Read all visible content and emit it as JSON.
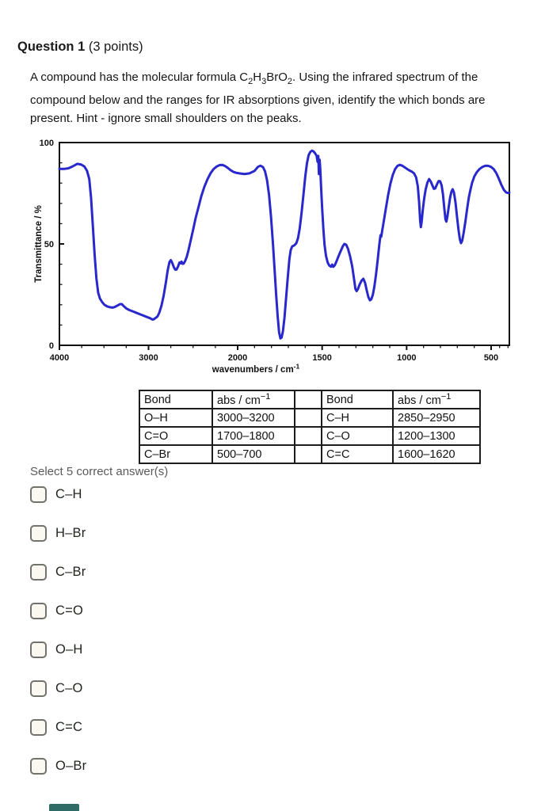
{
  "question": {
    "title_bold": "Question 1",
    "title_rest": " (3 points)",
    "body_parts": [
      {
        "t": "A compound has the molecular formula C"
      },
      {
        "sub": "2"
      },
      {
        "t": "H"
      },
      {
        "sub": "3"
      },
      {
        "t": "BrO"
      },
      {
        "sub": "2"
      },
      {
        "t": ".  Using the infrared spectrum of the compound below and the ranges for IR absorptions given, identify the which bonds are present. Hint - ignore small shoulders on the peaks."
      }
    ]
  },
  "chart_data": {
    "type": "line",
    "title": "",
    "xlabel": "wavenumbers / cm",
    "xlabel_superscript": "-1",
    "ylabel": "Transmittance / %",
    "line_color": "#2828cc",
    "x_axis": {
      "reversed": true,
      "scale_break": 2000,
      "xlim": [
        4000,
        390
      ],
      "major_ticks": [
        4000,
        3000,
        2000,
        1500,
        1000,
        500
      ],
      "minor_ticks": [
        3750,
        3500,
        3250,
        2750,
        2500,
        2250,
        1900,
        1800,
        1700,
        1600,
        1400,
        1300,
        1200,
        1100,
        900,
        800,
        700,
        600,
        450,
        400
      ]
    },
    "y_axis": {
      "ylim": [
        0,
        100
      ],
      "major_ticks": [
        0,
        50,
        100
      ],
      "minor_ticks": [
        10,
        20,
        30,
        40,
        60,
        70,
        80,
        90
      ]
    },
    "series": [
      {
        "name": "IR transmittance spectrum",
        "points": [
          [
            4000,
            87
          ],
          [
            3950,
            87
          ],
          [
            3900,
            87.3
          ],
          [
            3850,
            88.3
          ],
          [
            3800,
            89.5
          ],
          [
            3760,
            89.2
          ],
          [
            3720,
            88.2
          ],
          [
            3690,
            86
          ],
          [
            3665,
            82
          ],
          [
            3645,
            73
          ],
          [
            3625,
            59
          ],
          [
            3605,
            45
          ],
          [
            3585,
            33
          ],
          [
            3565,
            26
          ],
          [
            3545,
            23
          ],
          [
            3520,
            21.3
          ],
          [
            3495,
            20
          ],
          [
            3465,
            19.2
          ],
          [
            3435,
            18.8
          ],
          [
            3405,
            18.6
          ],
          [
            3375,
            19
          ],
          [
            3345,
            19.7
          ],
          [
            3320,
            20.3
          ],
          [
            3300,
            20.3
          ],
          [
            3280,
            19.4
          ],
          [
            3250,
            18.2
          ],
          [
            3215,
            17.4
          ],
          [
            3180,
            16.8
          ],
          [
            3140,
            16.1
          ],
          [
            3100,
            15.4
          ],
          [
            3060,
            14.7
          ],
          [
            3020,
            14
          ],
          [
            2985,
            13.4
          ],
          [
            2955,
            12.7
          ],
          [
            2940,
            12.9
          ],
          [
            2920,
            13.5
          ],
          [
            2900,
            14.2
          ],
          [
            2880,
            16
          ],
          [
            2855,
            19.5
          ],
          [
            2830,
            24.5
          ],
          [
            2805,
            31
          ],
          [
            2785,
            37
          ],
          [
            2765,
            41
          ],
          [
            2750,
            42
          ],
          [
            2735,
            40.8
          ],
          [
            2715,
            38.4
          ],
          [
            2700,
            37.3
          ],
          [
            2685,
            37.4
          ],
          [
            2668,
            38.9
          ],
          [
            2653,
            40.8
          ],
          [
            2640,
            40.4
          ],
          [
            2630,
            41.3
          ],
          [
            2618,
            40.2
          ],
          [
            2605,
            40.3
          ],
          [
            2590,
            41.5
          ],
          [
            2572,
            43.6
          ],
          [
            2552,
            46.8
          ],
          [
            2528,
            51.5
          ],
          [
            2500,
            57
          ],
          [
            2470,
            63
          ],
          [
            2440,
            68
          ],
          [
            2408,
            73.5
          ],
          [
            2375,
            78
          ],
          [
            2340,
            81.8
          ],
          [
            2305,
            84.8
          ],
          [
            2270,
            86.9
          ],
          [
            2235,
            88.2
          ],
          [
            2200,
            88.9
          ],
          [
            2170,
            89
          ],
          [
            2140,
            88.4
          ],
          [
            2110,
            87.5
          ],
          [
            2080,
            86.4
          ],
          [
            2050,
            85.6
          ],
          [
            2020,
            85.1
          ],
          [
            1990,
            84.8
          ],
          [
            1960,
            84.5
          ],
          [
            1930,
            84.8
          ],
          [
            1900,
            86
          ],
          [
            1880,
            88
          ],
          [
            1865,
            88.6
          ],
          [
            1850,
            87.9
          ],
          [
            1838,
            85.8
          ],
          [
            1826,
            81.5
          ],
          [
            1814,
            74
          ],
          [
            1802,
            63
          ],
          [
            1791,
            50
          ],
          [
            1781,
            37
          ],
          [
            1772,
            25
          ],
          [
            1763,
            14
          ],
          [
            1755,
            6.5
          ],
          [
            1747,
            3.4
          ],
          [
            1740,
            3.8
          ],
          [
            1732,
            7
          ],
          [
            1723,
            13.5
          ],
          [
            1713,
            23.5
          ],
          [
            1703,
            34
          ],
          [
            1694,
            42.5
          ],
          [
            1686,
            47
          ],
          [
            1677,
            48.8
          ],
          [
            1665,
            49.3
          ],
          [
            1653,
            50.3
          ],
          [
            1643,
            52.8
          ],
          [
            1633,
            57.5
          ],
          [
            1622,
            65
          ],
          [
            1611,
            74
          ],
          [
            1600,
            83
          ],
          [
            1590,
            89.8
          ],
          [
            1580,
            93.8
          ],
          [
            1570,
            95.4
          ],
          [
            1560,
            96
          ],
          [
            1550,
            95.6
          ],
          [
            1541,
            94.6
          ],
          [
            1533,
            93.6
          ],
          [
            1527,
            90.5
          ],
          [
            1523,
            93.4
          ],
          [
            1519,
            84.5
          ],
          [
            1515,
            91.5
          ],
          [
            1511,
            87
          ],
          [
            1506,
            77.5
          ],
          [
            1500,
            67.5
          ],
          [
            1493,
            57.5
          ],
          [
            1486,
            49.5
          ],
          [
            1477,
            44
          ],
          [
            1467,
            40.8
          ],
          [
            1457,
            39.3
          ],
          [
            1448,
            38.8
          ],
          [
            1441,
            39.8
          ],
          [
            1434,
            38.7
          ],
          [
            1426,
            39.4
          ],
          [
            1416,
            41.2
          ],
          [
            1404,
            43.7
          ],
          [
            1390,
            46.5
          ],
          [
            1377,
            49
          ],
          [
            1368,
            50
          ],
          [
            1358,
            49.6
          ],
          [
            1347,
            47.6
          ],
          [
            1335,
            44
          ],
          [
            1322,
            39
          ],
          [
            1311,
            32.5
          ],
          [
            1303,
            27.8
          ],
          [
            1296,
            26.7
          ],
          [
            1288,
            27.8
          ],
          [
            1278,
            30
          ],
          [
            1266,
            32
          ],
          [
            1256,
            32.8
          ],
          [
            1246,
            30.8
          ],
          [
            1236,
            27
          ],
          [
            1226,
            23.7
          ],
          [
            1217,
            22.2
          ],
          [
            1209,
            22.7
          ],
          [
            1200,
            25
          ],
          [
            1191,
            29
          ],
          [
            1181,
            35
          ],
          [
            1171,
            42.5
          ],
          [
            1162,
            49.5
          ],
          [
            1155,
            54.3
          ],
          [
            1150,
            53.6
          ],
          [
            1144,
            56.8
          ],
          [
            1136,
            60.8
          ],
          [
            1124,
            67
          ],
          [
            1110,
            74
          ],
          [
            1096,
            79.8
          ],
          [
            1082,
            84
          ],
          [
            1068,
            86.9
          ],
          [
            1054,
            88.5
          ],
          [
            1040,
            89
          ],
          [
            1026,
            88.6
          ],
          [
            1012,
            87.8
          ],
          [
            998,
            87
          ],
          [
            984,
            86.3
          ],
          [
            970,
            85.7
          ],
          [
            956,
            84.8
          ],
          [
            944,
            82.8
          ],
          [
            934,
            78.5
          ],
          [
            926,
            70.5
          ],
          [
            920,
            61.5
          ],
          [
            916,
            58.3
          ],
          [
            911,
            61
          ],
          [
            904,
            67
          ],
          [
            896,
            72.5
          ],
          [
            887,
            77
          ],
          [
            877,
            80.3
          ],
          [
            867,
            82
          ],
          [
            857,
            80.8
          ],
          [
            847,
            78.7
          ],
          [
            839,
            77.2
          ],
          [
            831,
            77.4
          ],
          [
            821,
            79.3
          ],
          [
            811,
            81
          ],
          [
            802,
            80.9
          ],
          [
            793,
            78.9
          ],
          [
            785,
            74.5
          ],
          [
            777,
            67.5
          ],
          [
            770,
            62
          ],
          [
            765,
            61
          ],
          [
            759,
            63.3
          ],
          [
            751,
            68.3
          ],
          [
            743,
            72.8
          ],
          [
            735,
            75.8
          ],
          [
            728,
            77
          ],
          [
            720,
            75.3
          ],
          [
            711,
            70.5
          ],
          [
            702,
            63.5
          ],
          [
            693,
            57
          ],
          [
            685,
            52.3
          ],
          [
            678,
            50.4
          ],
          [
            671,
            51.6
          ],
          [
            662,
            55.7
          ],
          [
            652,
            61.3
          ],
          [
            642,
            67.3
          ],
          [
            632,
            72.8
          ],
          [
            622,
            76.9
          ],
          [
            612,
            80.3
          ],
          [
            599,
            83.4
          ],
          [
            584,
            85.5
          ],
          [
            568,
            87
          ],
          [
            551,
            88
          ],
          [
            534,
            88.6
          ],
          [
            517,
            88.5
          ],
          [
            501,
            88
          ],
          [
            485,
            86.9
          ],
          [
            469,
            84.9
          ],
          [
            454,
            82.1
          ],
          [
            439,
            79.1
          ],
          [
            424,
            76.6
          ],
          [
            411,
            75.4
          ],
          [
            400,
            75.1
          ],
          [
            392,
            75.3
          ]
        ]
      }
    ]
  },
  "absorption_table": {
    "headers": [
      {
        "text": "Bond"
      },
      {
        "text": "abs / cm",
        "sup": "−1"
      },
      {
        "text": ""
      },
      {
        "text": "Bond"
      },
      {
        "text": "abs / cm",
        "sup": "−1"
      }
    ],
    "rows": [
      [
        "O–H",
        "3000–3200",
        "",
        "C–H",
        "2850–2950"
      ],
      [
        "C=O",
        "1700–1800",
        "",
        "C–O",
        "1200–1300"
      ],
      [
        "C–Br",
        "500–700",
        "",
        "C=C",
        "1600–1620"
      ]
    ]
  },
  "select_prompt": "Select 5 correct answer(s)",
  "options": [
    {
      "label": "C–H",
      "checked": false
    },
    {
      "label": "H–Br",
      "checked": false
    },
    {
      "label": "C–Br",
      "checked": false
    },
    {
      "label": "C=O",
      "checked": false
    },
    {
      "label": "O–H",
      "checked": false
    },
    {
      "label": "C–O",
      "checked": false
    },
    {
      "label": "C=C",
      "checked": false
    },
    {
      "label": "O–Br",
      "checked": false
    }
  ],
  "bottom_partial_color": "#2e6b67"
}
